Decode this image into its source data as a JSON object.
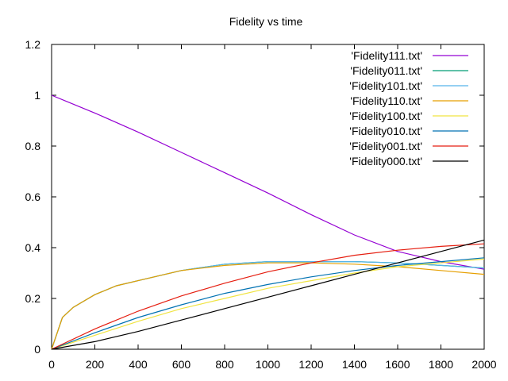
{
  "chart_data": {
    "type": "line",
    "title": "Fidelity vs time",
    "xlabel": "",
    "ylabel": "",
    "xlim": [
      0,
      2000
    ],
    "ylim": [
      0,
      1.2
    ],
    "xticks": [
      0,
      200,
      400,
      600,
      800,
      1000,
      1200,
      1400,
      1600,
      1800,
      2000
    ],
    "yticks": [
      0,
      0.2,
      0.4,
      0.6,
      0.8,
      1,
      1.2
    ],
    "grid": false,
    "legend_position": "top-right",
    "series": [
      {
        "name": "'Fidelity111.txt'",
        "color": "#9400d3",
        "x": [
          0,
          200,
          400,
          600,
          800,
          1000,
          1200,
          1400,
          1600,
          1800,
          2000
        ],
        "y": [
          1.0,
          0.93,
          0.855,
          0.775,
          0.695,
          0.615,
          0.53,
          0.45,
          0.385,
          0.345,
          0.315
        ]
      },
      {
        "name": "'Fidelity011.txt'",
        "color": "#009e73",
        "x": [
          0,
          50,
          100,
          200,
          300,
          400,
          600,
          800,
          1000,
          1200,
          1400,
          1600,
          1800,
          2000
        ],
        "y": [
          0.0,
          0.125,
          0.165,
          0.215,
          0.25,
          0.27,
          0.31,
          0.335,
          0.345,
          0.345,
          0.345,
          0.34,
          0.33,
          0.32
        ]
      },
      {
        "name": "'Fidelity101.txt'",
        "color": "#56b4e9",
        "x": [
          0,
          50,
          100,
          200,
          300,
          400,
          600,
          800,
          1000,
          1200,
          1400,
          1600,
          1800,
          2000
        ],
        "y": [
          0.0,
          0.125,
          0.165,
          0.215,
          0.25,
          0.27,
          0.31,
          0.335,
          0.345,
          0.345,
          0.345,
          0.34,
          0.33,
          0.32
        ]
      },
      {
        "name": "'Fidelity110.txt'",
        "color": "#e69f00",
        "x": [
          0,
          50,
          100,
          200,
          300,
          400,
          600,
          800,
          1000,
          1200,
          1400,
          1600,
          1800,
          2000
        ],
        "y": [
          0.0,
          0.125,
          0.165,
          0.215,
          0.25,
          0.27,
          0.31,
          0.33,
          0.34,
          0.34,
          0.335,
          0.325,
          0.31,
          0.295
        ]
      },
      {
        "name": "'Fidelity100.txt'",
        "color": "#f0e442",
        "x": [
          0,
          200,
          400,
          600,
          800,
          1000,
          1200,
          1400,
          1600,
          1800,
          2000
        ],
        "y": [
          0.0,
          0.055,
          0.11,
          0.16,
          0.2,
          0.24,
          0.27,
          0.3,
          0.325,
          0.34,
          0.355
        ]
      },
      {
        "name": "'Fidelity010.txt'",
        "color": "#0072b2",
        "x": [
          0,
          200,
          400,
          600,
          800,
          1000,
          1200,
          1400,
          1600,
          1800,
          2000
        ],
        "y": [
          0.0,
          0.065,
          0.125,
          0.175,
          0.22,
          0.255,
          0.285,
          0.31,
          0.33,
          0.345,
          0.36
        ]
      },
      {
        "name": "'Fidelity001.txt'",
        "color": "#e51e10",
        "x": [
          0,
          200,
          400,
          600,
          800,
          1000,
          1200,
          1400,
          1600,
          1800,
          2000
        ],
        "y": [
          0.0,
          0.08,
          0.15,
          0.21,
          0.26,
          0.305,
          0.34,
          0.37,
          0.39,
          0.405,
          0.415
        ]
      },
      {
        "name": "'Fidelity000.txt'",
        "color": "#000000",
        "x": [
          0,
          200,
          400,
          600,
          800,
          1000,
          1200,
          1400,
          1600,
          1800,
          2000
        ],
        "y": [
          0.0,
          0.03,
          0.07,
          0.115,
          0.16,
          0.205,
          0.25,
          0.295,
          0.34,
          0.385,
          0.43
        ]
      }
    ]
  }
}
